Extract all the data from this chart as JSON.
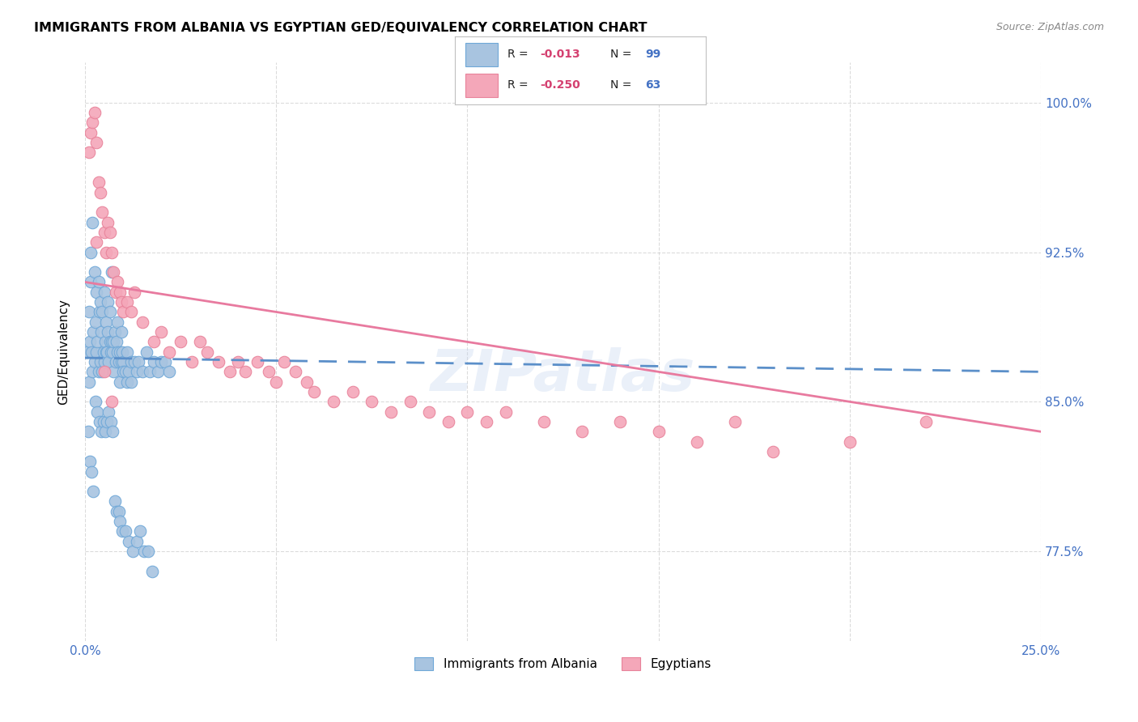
{
  "title": "IMMIGRANTS FROM ALBANIA VS EGYPTIAN GED/EQUIVALENCY CORRELATION CHART",
  "source": "Source: ZipAtlas.com",
  "ylabel": "GED/Equivalency",
  "color_albania": "#a8c4e0",
  "color_egypt": "#f4a7b9",
  "color_albania_edge": "#6fa8d8",
  "color_egypt_edge": "#e8829a",
  "color_albania_line": "#5b8fc9",
  "color_egypt_line": "#e87a9f",
  "color_axis_labels": "#4472c4",
  "background": "#ffffff",
  "grid_color": "#cccccc",
  "xmin": 0.0,
  "xmax": 25.0,
  "ymin": 73.0,
  "ymax": 102.0,
  "yticks": [
    77.5,
    85.0,
    92.5,
    100.0
  ],
  "ytick_labels": [
    "77.5%",
    "85.0%",
    "92.5%",
    "100.0%"
  ],
  "alb_line_x0": 0.0,
  "alb_line_x1": 25.0,
  "alb_line_y0": 87.2,
  "alb_line_y1": 86.5,
  "egy_line_x0": 0.0,
  "egy_line_x1": 25.0,
  "egy_line_y0": 91.0,
  "egy_line_y1": 83.5,
  "albania_x": [
    0.05,
    0.1,
    0.1,
    0.12,
    0.15,
    0.15,
    0.18,
    0.2,
    0.2,
    0.22,
    0.25,
    0.25,
    0.28,
    0.3,
    0.3,
    0.32,
    0.35,
    0.35,
    0.38,
    0.4,
    0.4,
    0.42,
    0.45,
    0.45,
    0.48,
    0.5,
    0.5,
    0.52,
    0.55,
    0.55,
    0.58,
    0.6,
    0.6,
    0.62,
    0.65,
    0.65,
    0.68,
    0.7,
    0.7,
    0.72,
    0.75,
    0.75,
    0.78,
    0.8,
    0.82,
    0.85,
    0.85,
    0.88,
    0.9,
    0.92,
    0.95,
    0.95,
    0.98,
    1.0,
    1.0,
    1.05,
    1.1,
    1.1,
    1.15,
    1.2,
    1.2,
    1.3,
    1.35,
    1.4,
    1.5,
    1.6,
    1.7,
    1.8,
    1.9,
    2.0,
    2.1,
    2.2,
    0.08,
    0.12,
    0.18,
    0.22,
    0.28,
    0.32,
    0.38,
    0.42,
    0.48,
    0.52,
    0.58,
    0.62,
    0.68,
    0.72,
    0.78,
    0.82,
    0.88,
    0.92,
    0.98,
    1.05,
    1.15,
    1.25,
    1.35,
    1.45,
    1.55,
    1.65,
    1.75
  ],
  "albania_y": [
    87.5,
    86.0,
    89.5,
    88.0,
    92.5,
    91.0,
    87.5,
    94.0,
    86.5,
    88.5,
    87.0,
    91.5,
    89.0,
    87.5,
    90.5,
    88.0,
    86.5,
    91.0,
    89.5,
    87.0,
    90.0,
    88.5,
    86.5,
    89.5,
    87.5,
    87.0,
    90.5,
    88.0,
    87.5,
    89.0,
    87.5,
    88.5,
    90.0,
    87.0,
    88.0,
    89.5,
    87.5,
    88.0,
    91.5,
    87.5,
    88.0,
    86.5,
    88.5,
    87.0,
    88.0,
    87.5,
    89.0,
    87.0,
    87.5,
    86.0,
    87.0,
    88.5,
    87.5,
    87.0,
    86.5,
    86.5,
    87.5,
    86.0,
    86.5,
    86.0,
    87.0,
    87.0,
    86.5,
    87.0,
    86.5,
    87.5,
    86.5,
    87.0,
    86.5,
    87.0,
    87.0,
    86.5,
    83.5,
    82.0,
    81.5,
    80.5,
    85.0,
    84.5,
    84.0,
    83.5,
    84.0,
    83.5,
    84.0,
    84.5,
    84.0,
    83.5,
    80.0,
    79.5,
    79.5,
    79.0,
    78.5,
    78.5,
    78.0,
    77.5,
    78.0,
    78.5,
    77.5,
    77.5,
    76.5
  ],
  "egypt_x": [
    0.1,
    0.15,
    0.2,
    0.25,
    0.3,
    0.35,
    0.4,
    0.45,
    0.5,
    0.55,
    0.6,
    0.65,
    0.7,
    0.75,
    0.8,
    0.85,
    0.9,
    0.95,
    1.0,
    1.1,
    1.2,
    1.3,
    1.5,
    1.8,
    2.0,
    2.2,
    2.5,
    2.8,
    3.0,
    3.2,
    3.5,
    3.8,
    4.0,
    4.2,
    4.5,
    4.8,
    5.0,
    5.2,
    5.5,
    5.8,
    6.0,
    6.5,
    7.0,
    7.5,
    8.0,
    8.5,
    9.0,
    9.5,
    10.0,
    10.5,
    11.0,
    12.0,
    13.0,
    14.0,
    15.0,
    16.0,
    17.0,
    18.0,
    20.0,
    22.0,
    0.3,
    0.5,
    0.7
  ],
  "egypt_y": [
    97.5,
    98.5,
    99.0,
    99.5,
    98.0,
    96.0,
    95.5,
    94.5,
    93.5,
    92.5,
    94.0,
    93.5,
    92.5,
    91.5,
    90.5,
    91.0,
    90.5,
    90.0,
    89.5,
    90.0,
    89.5,
    90.5,
    89.0,
    88.0,
    88.5,
    87.5,
    88.0,
    87.0,
    88.0,
    87.5,
    87.0,
    86.5,
    87.0,
    86.5,
    87.0,
    86.5,
    86.0,
    87.0,
    86.5,
    86.0,
    85.5,
    85.0,
    85.5,
    85.0,
    84.5,
    85.0,
    84.5,
    84.0,
    84.5,
    84.0,
    84.5,
    84.0,
    83.5,
    84.0,
    83.5,
    83.0,
    84.0,
    82.5,
    83.0,
    84.0,
    93.0,
    86.5,
    85.0
  ]
}
